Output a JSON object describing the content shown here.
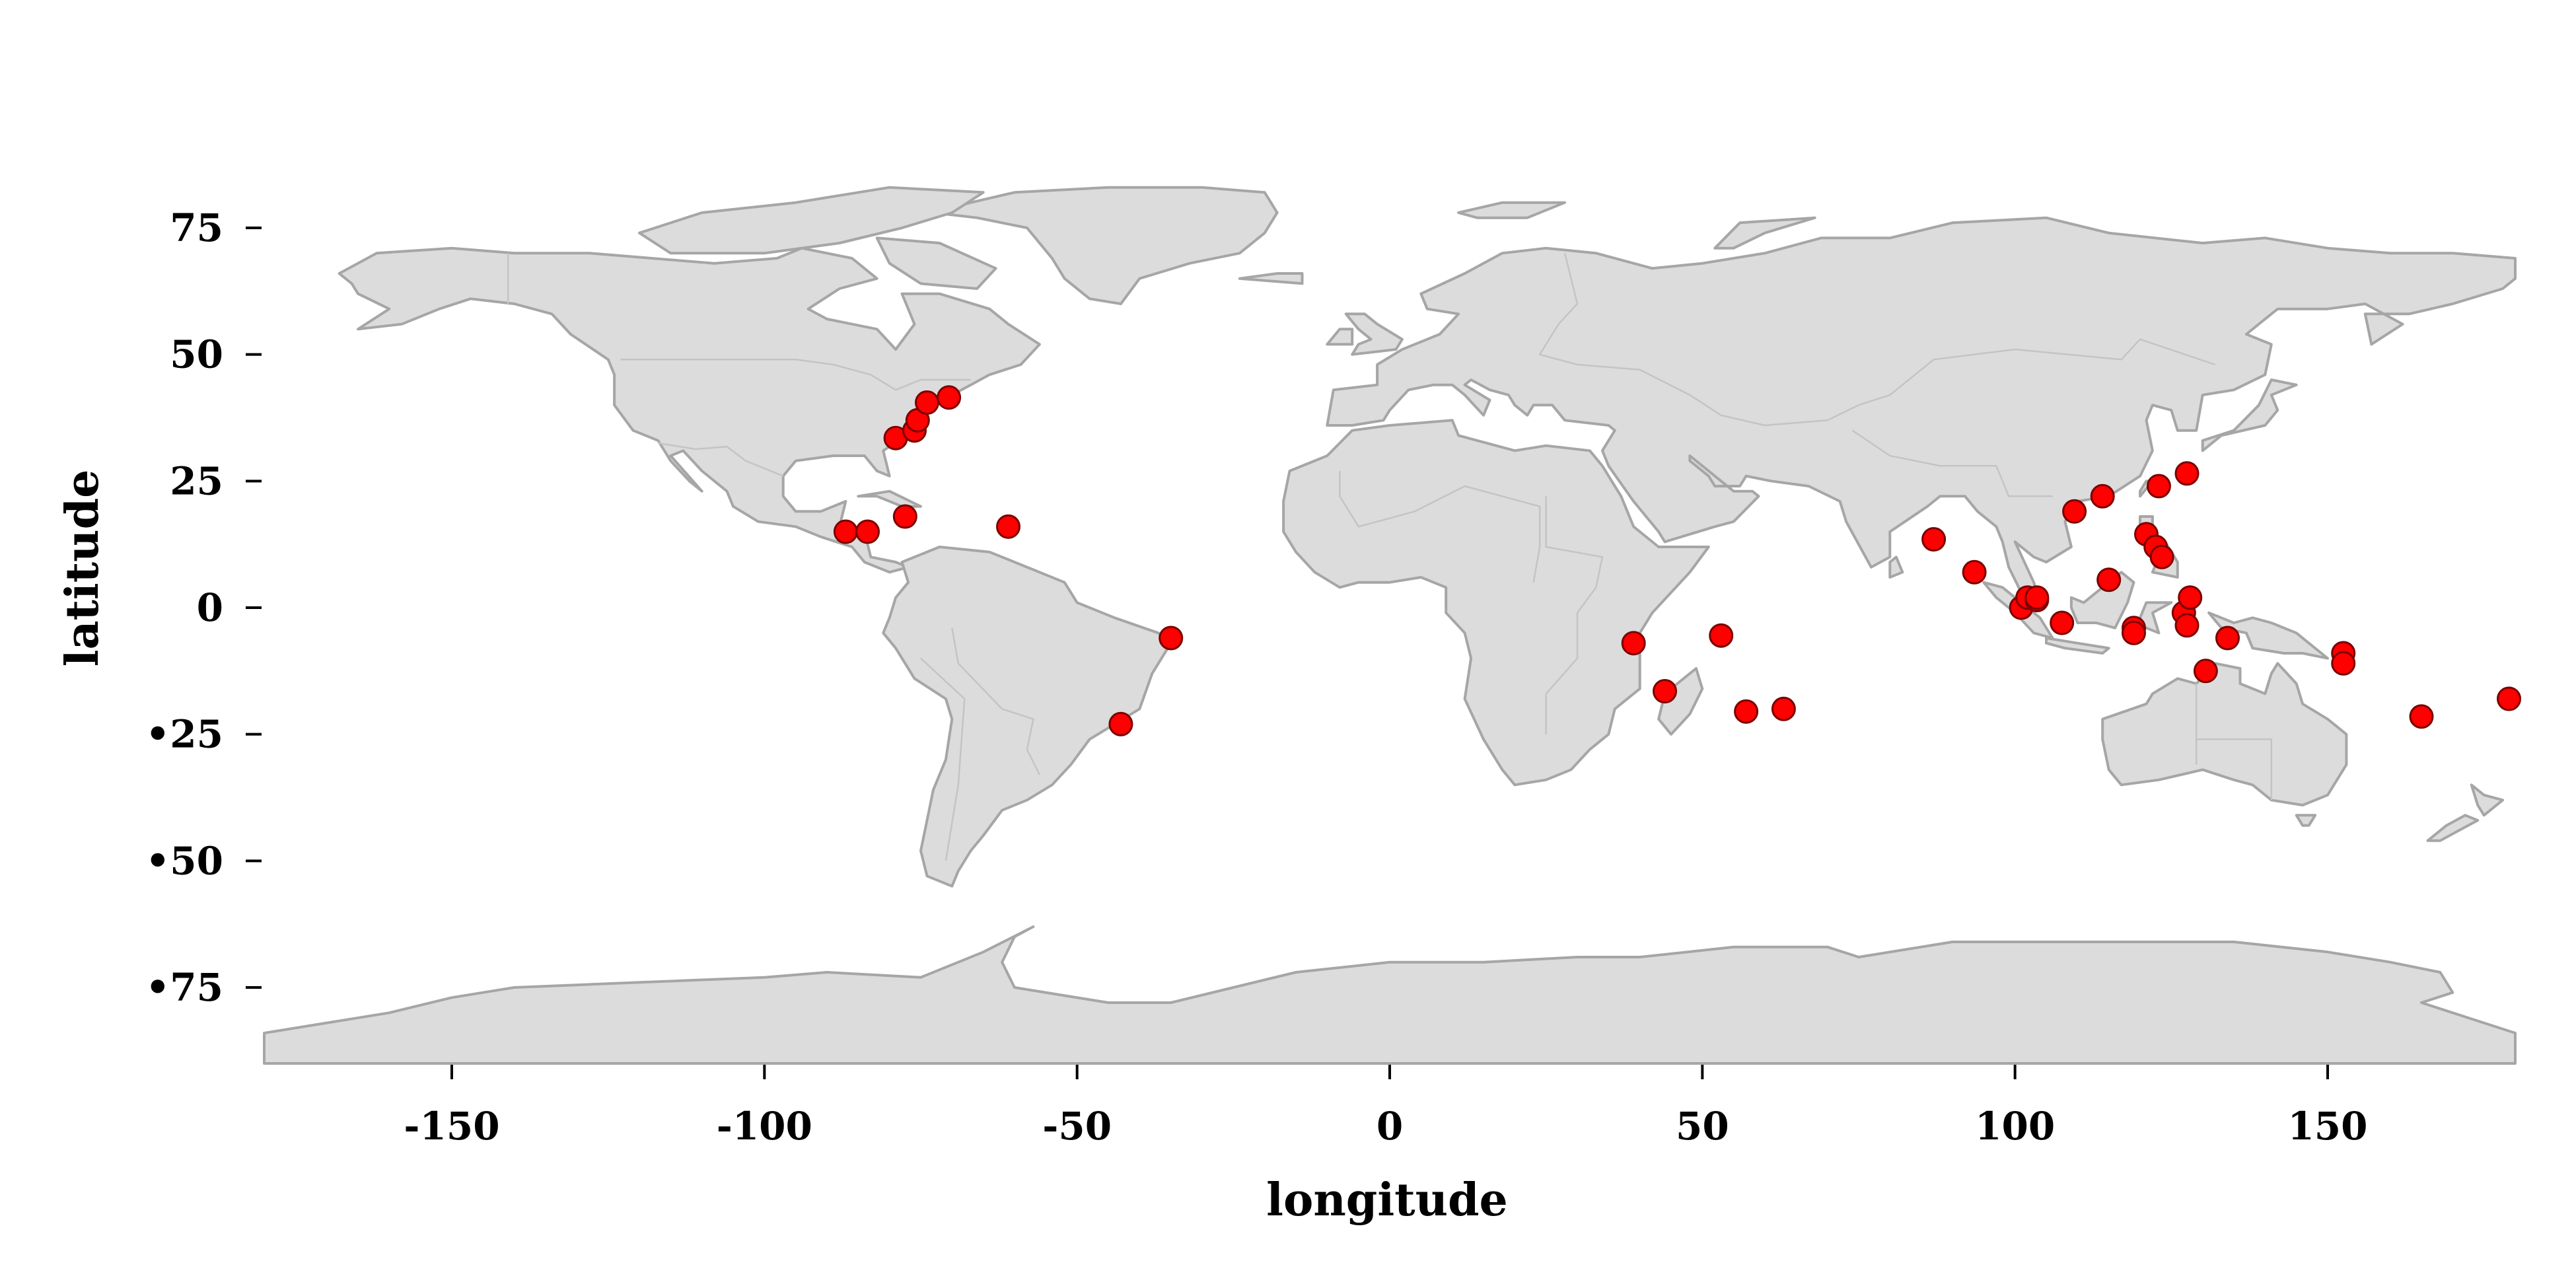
{
  "chart_data": {
    "type": "scatter",
    "title": "",
    "xlabel": "longitude",
    "ylabel": "latitude",
    "xlim": [
      -180,
      180
    ],
    "ylim": [
      -90,
      90
    ],
    "x_ticks": [
      {
        "value": -150,
        "label": "-150"
      },
      {
        "value": -100,
        "label": "-100"
      },
      {
        "value": -50,
        "label": "-50"
      },
      {
        "value": 0,
        "label": "0"
      },
      {
        "value": 50,
        "label": "50"
      },
      {
        "value": 100,
        "label": "100"
      },
      {
        "value": 150,
        "label": "150"
      }
    ],
    "y_ticks": [
      {
        "value": 75,
        "label": "75"
      },
      {
        "value": 50,
        "label": "50"
      },
      {
        "value": 25,
        "label": "25"
      },
      {
        "value": 0,
        "label": "0"
      },
      {
        "value": -25,
        "label": "•25"
      },
      {
        "value": -50,
        "label": "•50"
      },
      {
        "value": -75,
        "label": "•75"
      }
    ],
    "basemap": "world countries (gray)",
    "marker_color": "#ff0000",
    "land_color": "#dcdcdc",
    "points": [
      {
        "x": -87,
        "y": 15
      },
      {
        "x": -83.5,
        "y": 15
      },
      {
        "x": -77.5,
        "y": 18
      },
      {
        "x": -61,
        "y": 16
      },
      {
        "x": -79,
        "y": 33.5
      },
      {
        "x": -76,
        "y": 35
      },
      {
        "x": -75.5,
        "y": 37
      },
      {
        "x": -74,
        "y": 40.5
      },
      {
        "x": -70.5,
        "y": 41.5
      },
      {
        "x": -35,
        "y": -6
      },
      {
        "x": -43,
        "y": -23
      },
      {
        "x": 39,
        "y": -7
      },
      {
        "x": 44,
        "y": -16.5
      },
      {
        "x": 53,
        "y": -5.5
      },
      {
        "x": 57,
        "y": -20.5
      },
      {
        "x": 63,
        "y": -20
      },
      {
        "x": 87,
        "y": 13.5
      },
      {
        "x": 93.5,
        "y": 7
      },
      {
        "x": 101,
        "y": 0
      },
      {
        "x": 102,
        "y": 2
      },
      {
        "x": 103.5,
        "y": 1.5
      },
      {
        "x": 103.5,
        "y": 2
      },
      {
        "x": 107.5,
        "y": -3
      },
      {
        "x": 109.5,
        "y": 19
      },
      {
        "x": 114,
        "y": 22
      },
      {
        "x": 115,
        "y": 5.5
      },
      {
        "x": 119,
        "y": -4
      },
      {
        "x": 119,
        "y": -5
      },
      {
        "x": 121,
        "y": 14.5
      },
      {
        "x": 122.5,
        "y": 12
      },
      {
        "x": 123,
        "y": 24
      },
      {
        "x": 123.5,
        "y": 10
      },
      {
        "x": 127.5,
        "y": 26.5
      },
      {
        "x": 127,
        "y": -1
      },
      {
        "x": 127.5,
        "y": -3.5
      },
      {
        "x": 128,
        "y": 2
      },
      {
        "x": 130.5,
        "y": -12.5
      },
      {
        "x": 134,
        "y": -6
      },
      {
        "x": 152.5,
        "y": -9
      },
      {
        "x": 152.5,
        "y": -11
      },
      {
        "x": 165,
        "y": -21.5
      },
      {
        "x": 179,
        "y": -18
      }
    ]
  }
}
